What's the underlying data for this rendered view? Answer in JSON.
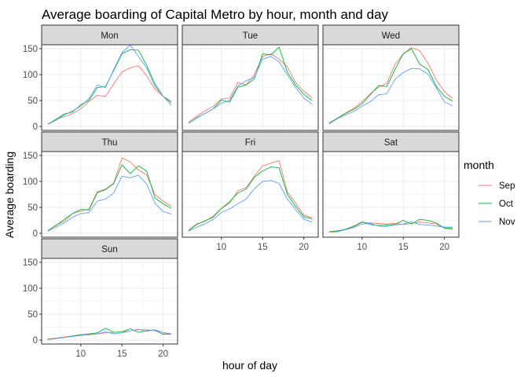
{
  "chart_data": {
    "type": "line",
    "title": "Average boarding of Capital Metro by hour, month and day",
    "xlabel": "hour of day",
    "ylabel": "Average boarding",
    "xlim": [
      5.25,
      21.75
    ],
    "ylim": [
      -7.5,
      157.5
    ],
    "xticks": [
      10,
      15,
      20
    ],
    "yticks": [
      0,
      50,
      100,
      150
    ],
    "grid": true,
    "legend": {
      "title": "month",
      "position": "right",
      "entries": [
        {
          "name": "Sep",
          "color": "#F8766D"
        },
        {
          "name": "Oct",
          "color": "#00BA38"
        },
        {
          "name": "Nov",
          "color": "#619CFF"
        }
      ]
    },
    "x": [
      6,
      7,
      8,
      9,
      10,
      11,
      12,
      13,
      14,
      15,
      16,
      17,
      18,
      19,
      20,
      21
    ],
    "panels": [
      {
        "day": "Mon",
        "series": [
          {
            "name": "Sep",
            "values": [
              5,
              13,
              19,
              25,
              34,
              48,
              60,
              58,
              82,
              105,
              113,
              117,
              98,
              72,
              58,
              45
            ]
          },
          {
            "name": "Oct",
            "values": [
              4,
              14,
              24,
              28,
              42,
              50,
              75,
              77,
              108,
              140,
              148,
              147,
              118,
              82,
              58,
              48
            ]
          },
          {
            "name": "Nov",
            "values": [
              4,
              12,
              22,
              30,
              39,
              54,
              80,
              75,
              110,
              142,
              157,
              135,
              113,
              78,
              58,
              41
            ]
          }
        ]
      },
      {
        "day": "Tue",
        "series": [
          {
            "name": "Sep",
            "values": [
              8,
              20,
              30,
              39,
              53,
              55,
              85,
              80,
              100,
              135,
              140,
              130,
              115,
              85,
              68,
              55
            ]
          },
          {
            "name": "Oct",
            "values": [
              6,
              17,
              25,
              34,
              51,
              47,
              76,
              80,
              92,
              140,
              138,
              153,
              105,
              80,
              62,
              50
            ]
          },
          {
            "name": "Nov",
            "values": [
              6,
              16,
              25,
              34,
              45,
              50,
              78,
              88,
              95,
              130,
              135,
              125,
              100,
              75,
              55,
              43
            ]
          }
        ]
      },
      {
        "day": "Wed",
        "series": [
          {
            "name": "Sep",
            "values": [
              7,
              16,
              26,
              35,
              48,
              63,
              76,
              83,
              120,
              140,
              152,
              146,
              122,
              90,
              67,
              54
            ]
          },
          {
            "name": "Oct",
            "values": [
              6,
              16,
              25,
              33,
              44,
              61,
              79,
              77,
              110,
              140,
              150,
              120,
              110,
              78,
              58,
              49
            ]
          },
          {
            "name": "Nov",
            "values": [
              5,
              15,
              22,
              29,
              39,
              48,
              61,
              63,
              91,
              104,
              112,
              111,
              101,
              75,
              47,
              40
            ]
          }
        ]
      },
      {
        "day": "Thu",
        "series": [
          {
            "name": "Sep",
            "values": [
              5,
              16,
              23,
              38,
              43,
              47,
              80,
              85,
              97,
              145,
              138,
              122,
              113,
              75,
              62,
              52
            ]
          },
          {
            "name": "Oct",
            "values": [
              5,
              15,
              27,
              38,
              46,
              45,
              78,
              84,
              96,
              132,
              115,
              130,
              120,
              68,
              57,
              48
            ]
          },
          {
            "name": "Nov",
            "values": [
              4,
              12,
              20,
              31,
              38,
              40,
              62,
              66,
              78,
              110,
              107,
              112,
              95,
              58,
              42,
              37
            ]
          }
        ]
      },
      {
        "day": "Fri",
        "series": [
          {
            "name": "Sep",
            "values": [
              6,
              18,
              23,
              33,
              48,
              58,
              82,
              88,
              110,
              130,
              135,
              140,
              80,
              58,
              35,
              30
            ]
          },
          {
            "name": "Oct",
            "values": [
              5,
              17,
              24,
              31,
              48,
              61,
              78,
              85,
              108,
              120,
              128,
              126,
              75,
              52,
              32,
              28
            ]
          },
          {
            "name": "Nov",
            "values": [
              4,
              12,
              18,
              27,
              40,
              47,
              57,
              66,
              86,
              100,
              102,
              96,
              66,
              46,
              27,
              22
            ]
          }
        ]
      },
      {
        "day": "Sat",
        "series": [
          {
            "name": "Sep",
            "values": [
              3,
              5,
              7,
              13,
              21,
              20,
              19,
              18,
              19,
              17,
              19,
              22,
              20,
              18,
              10,
              7
            ]
          },
          {
            "name": "Oct",
            "values": [
              3,
              4,
              8,
              14,
              22,
              17,
              15,
              16,
              17,
              25,
              18,
              27,
              25,
              20,
              10,
              10
            ]
          },
          {
            "name": "Nov",
            "values": [
              2,
              3,
              7,
              11,
              18,
              19,
              14,
              13,
              16,
              18,
              22,
              17,
              16,
              14,
              12,
              12
            ]
          }
        ]
      },
      {
        "day": "Sun",
        "series": [
          {
            "name": "Sep",
            "values": [
              2,
              4,
              6,
              8,
              11,
              10,
              12,
              14,
              15,
              16,
              18,
              20,
              20,
              18,
              12,
              12
            ]
          },
          {
            "name": "Oct",
            "values": [
              2,
              3,
              5,
              8,
              10,
              12,
              14,
              23,
              15,
              16,
              22,
              15,
              18,
              20,
              11,
              12
            ]
          },
          {
            "name": "Nov",
            "values": [
              1,
              3,
              5,
              7,
              9,
              11,
              12,
              16,
              12,
              14,
              18,
              21,
              17,
              20,
              15,
              12
            ]
          }
        ]
      }
    ]
  }
}
